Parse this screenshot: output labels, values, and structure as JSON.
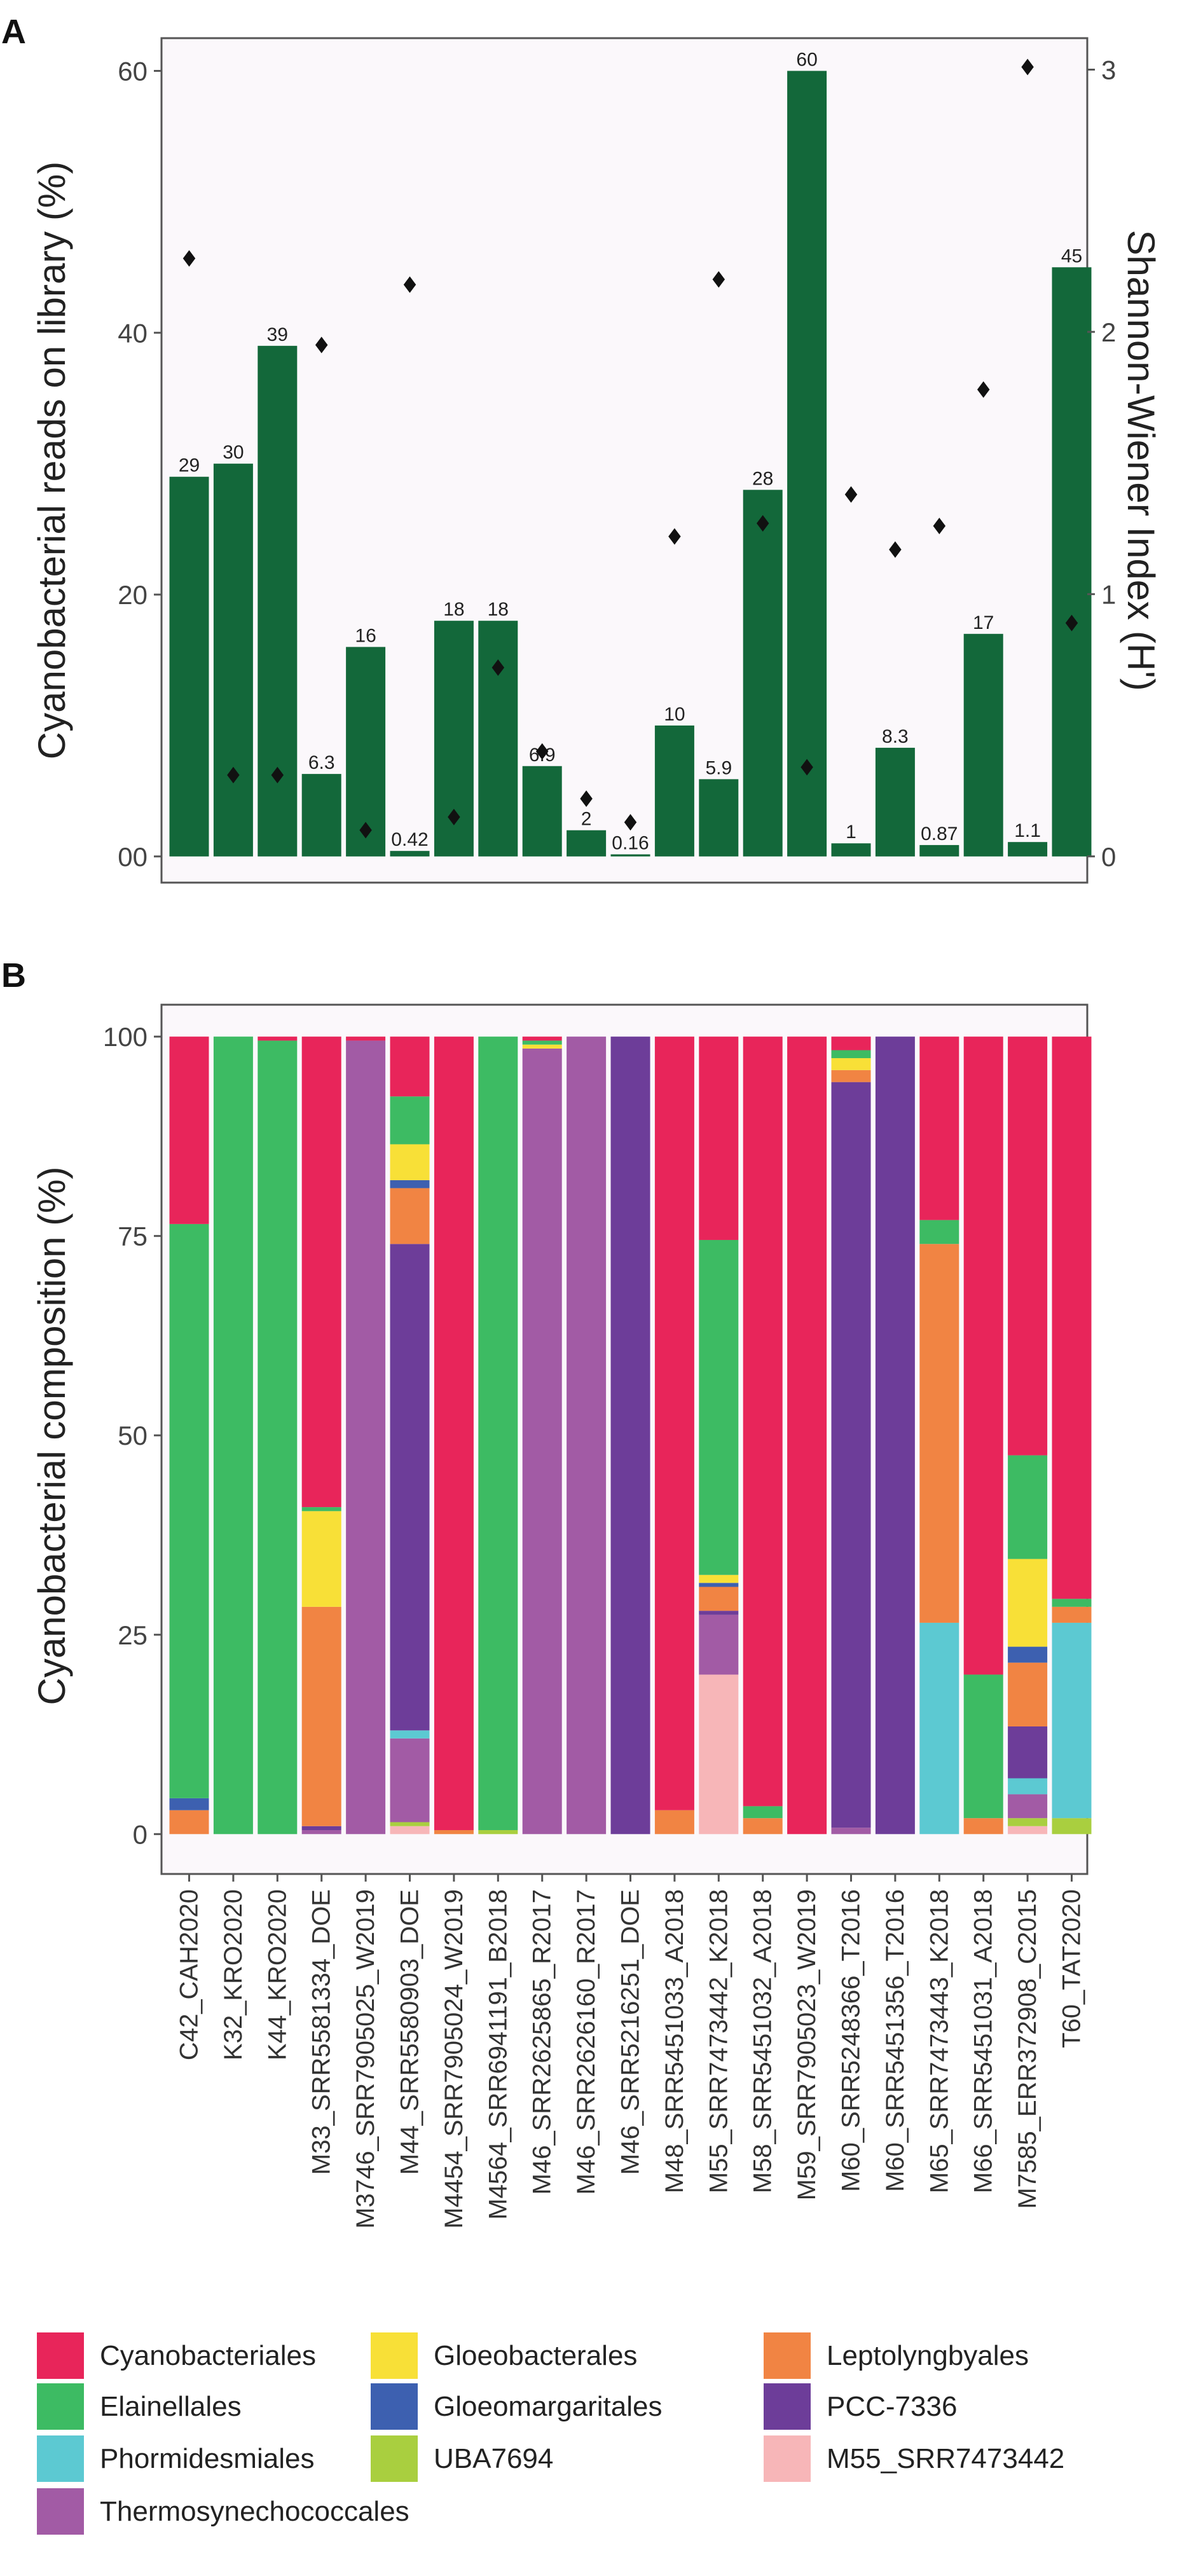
{
  "chart_data": [
    {
      "panel": "A",
      "type": "bar",
      "ylabel": "Cyanobacterial reads on library (%)",
      "y2label": "Shannon-Wiener Index (H')",
      "ylim": [
        -2.0,
        62.5
      ],
      "yticks": [
        0,
        20,
        40,
        60
      ],
      "ytick_labels": [
        "00",
        "20",
        "40",
        "60"
      ],
      "y2lim": [
        -0.1,
        3.12
      ],
      "y2ticks": [
        0,
        1,
        2,
        3
      ],
      "y2tick_labels": [
        "0",
        "1",
        "2",
        "3"
      ],
      "values": [
        29,
        30,
        39,
        6.3,
        16,
        0.42,
        18,
        18,
        6.9,
        2,
        0.16,
        10,
        5.9,
        28,
        60,
        1,
        8.3,
        0.87,
        17,
        1.1,
        45
      ],
      "labels": [
        "29",
        "30",
        "39",
        "6.3",
        "16",
        "0.42",
        "18",
        "18",
        "6.9",
        "2",
        "0.16",
        "10",
        "5.9",
        "28",
        "60",
        "1",
        "8.3",
        "0.87",
        "17",
        "1.1",
        "45"
      ],
      "shannon": [
        2.28,
        0.31,
        0.31,
        1.95,
        0.1,
        2.18,
        0.15,
        0.72,
        0.4,
        0.22,
        0.13,
        1.22,
        2.2,
        1.27,
        0.34,
        1.38,
        1.17,
        1.26,
        1.78,
        3.01,
        0.89
      ],
      "bar_color": "#13683a",
      "marker": "diamond",
      "bg_color": "#fbf8fb"
    },
    {
      "panel": "B",
      "type": "bar",
      "stacked": true,
      "ylabel": "Cyanobacterial composition (%)",
      "ylim": [
        -5,
        104
      ],
      "yticks": [
        0,
        25,
        50,
        75,
        100
      ],
      "categories": [
        "C42_CAH2020",
        "K32_KRO2020",
        "K44_KRO2020",
        "M33_SRR5581334_DOE",
        "M3746_SRR7905025_W2019",
        "M44_SRR5580903_DOE",
        "M4454_SRR7905024_W2019",
        "M4564_SRR6941191_B2018",
        "M46_SRR2625865_R2017",
        "M46_SRR2626160_R2017",
        "M46_SRR5216251_DOE",
        "M48_SRR5451033_A2018",
        "M55_SRR7473442_K2018",
        "M58_SRR5451032_A2018",
        "M59_SRR7905023_W2019",
        "M60_SRR5248366_T2016",
        "M60_SRR5451356_T2016",
        "M65_SRR7473443_K2018",
        "M66_SRR5451031_A2018",
        "M7585_ERR372908_C2015",
        "T60_TAT2020"
      ],
      "series": [
        {
          "name": "M55_SRR7473442",
          "color": "#f7b6b8",
          "values": [
            0,
            0,
            0,
            0,
            0,
            1,
            0,
            0,
            0,
            0,
            0,
            0,
            20,
            0,
            0,
            0,
            0,
            0,
            0,
            1,
            0
          ]
        },
        {
          "name": "UBA7694",
          "color": "#a9cf3f",
          "values": [
            0,
            0,
            0,
            0,
            0,
            0.5,
            0,
            0.5,
            0,
            0,
            0,
            0,
            0,
            0,
            0,
            0,
            0,
            0,
            0,
            1,
            2
          ]
        },
        {
          "name": "Thermosynechococcales",
          "color": "#a25ba5",
          "values": [
            0,
            0,
            0,
            0.5,
            99.5,
            10.5,
            0,
            0,
            98.5,
            100,
            0,
            0,
            7.5,
            0,
            0,
            0.8,
            0,
            0,
            0,
            3,
            0
          ]
        },
        {
          "name": "Phormidesmiales",
          "color": "#5cc9d2",
          "values": [
            0,
            0,
            0,
            0,
            0,
            1,
            0,
            0,
            0,
            0,
            0,
            0,
            0,
            0,
            0,
            0,
            0,
            26.5,
            0,
            2,
            24.5
          ]
        },
        {
          "name": "PCC-7336",
          "color": "#6d3d99",
          "values": [
            0,
            0,
            0,
            0.5,
            0,
            61,
            0,
            0,
            0,
            0,
            100,
            0,
            0.5,
            0,
            0,
            93.5,
            100,
            0,
            0,
            6.5,
            0
          ]
        },
        {
          "name": "Leptolyngbyales",
          "color": "#f18443",
          "values": [
            3,
            0,
            0,
            27.5,
            0,
            7,
            0.5,
            0,
            0,
            0,
            0,
            3,
            3,
            2,
            0,
            1.5,
            0,
            47.5,
            2,
            8,
            2
          ]
        },
        {
          "name": "Gloeomargaritales",
          "color": "#3d60b0",
          "values": [
            1.5,
            0,
            0,
            0,
            0,
            1,
            0,
            0,
            0,
            0,
            0,
            0,
            0.5,
            0,
            0,
            0,
            0,
            0,
            0,
            2,
            0
          ]
        },
        {
          "name": "Gloeobacterales",
          "color": "#f8e037",
          "values": [
            0,
            0,
            0,
            12,
            0,
            4.5,
            0,
            0,
            0.5,
            0,
            0,
            0,
            1,
            0,
            0,
            1.5,
            0,
            0,
            0,
            11,
            0
          ]
        },
        {
          "name": "Elainellales",
          "color": "#3dbb63",
          "values": [
            72,
            100,
            99.5,
            0.5,
            0,
            6,
            0,
            99.5,
            0.5,
            0,
            0,
            0,
            42,
            1.5,
            0,
            1,
            0,
            3,
            18,
            13,
            1
          ]
        },
        {
          "name": "Cyanobacteriales",
          "color": "#e8255a",
          "values": [
            23.5,
            0,
            0.5,
            59,
            0.5,
            7.5,
            99.5,
            0,
            0.5,
            0,
            0,
            97,
            25.5,
            96.5,
            100,
            1.7,
            0,
            23,
            80,
            52.5,
            70.5
          ]
        }
      ],
      "bg_color": "#fbf8fb"
    }
  ],
  "panels": {
    "a_tag": "A",
    "b_tag": "B"
  },
  "legend": [
    {
      "label": "Cyanobacteriales",
      "color": "#e8255a"
    },
    {
      "label": "Gloeobacterales",
      "color": "#f8e037"
    },
    {
      "label": "Leptolyngbyales",
      "color": "#f18443"
    },
    {
      "label": "Elainellales",
      "color": "#3dbb63"
    },
    {
      "label": "Gloeomargaritales",
      "color": "#3d60b0"
    },
    {
      "label": "PCC-7336",
      "color": "#6d3d99"
    },
    {
      "label": "Phormidesmiales",
      "color": "#5cc9d2"
    },
    {
      "label": "UBA7694",
      "color": "#a9cf3f"
    },
    {
      "label": "M55_SRR7473442",
      "color": "#f7b6b8"
    },
    {
      "label": "Thermosynechococcales",
      "color": "#a25ba5"
    }
  ]
}
